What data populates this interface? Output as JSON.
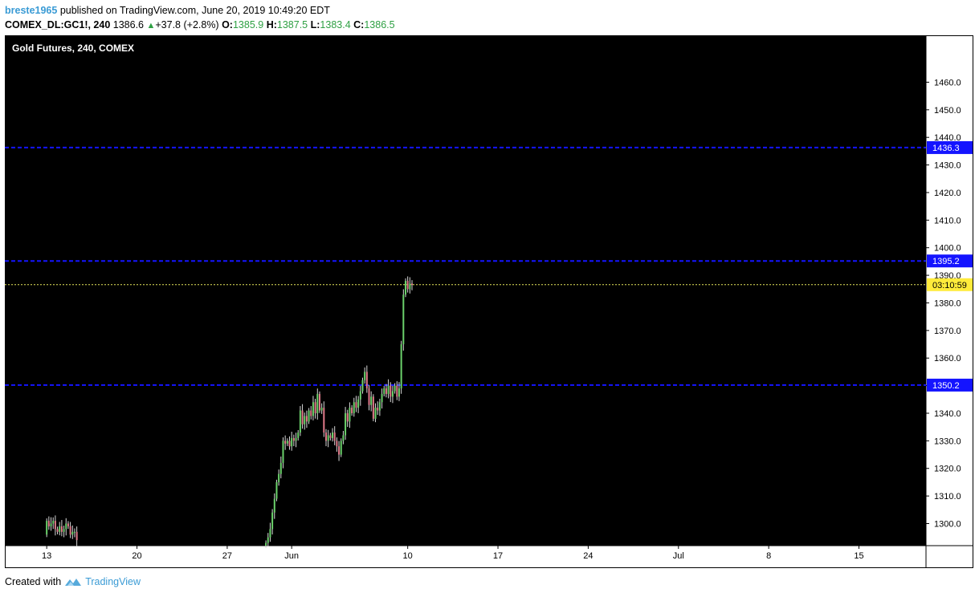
{
  "header": {
    "user": "breste1965",
    "published_text": "published on TradingView.com, June 20, 2019 10:49:20 EDT",
    "symbol": "COMEX_DL:GC1!, 240",
    "last": "1386.6",
    "change": "+37.8 (+2.8%)",
    "open_label": "O:",
    "open": "1385.9",
    "high_label": "H:",
    "high": "1387.5",
    "low_label": "L:",
    "low": "1383.4",
    "close_label": "C:",
    "close": "1386.5"
  },
  "footer": {
    "created_with": "Created with",
    "brand": "TradingView"
  },
  "colors": {
    "background": "#000000",
    "up_candle": "#6bd16b",
    "down_candle": "#e07a8a",
    "level_line": "#1414ff",
    "price_line": "#e6e65a",
    "countdown_bg": "#ffeb3b",
    "axis_bg": "#ffffff"
  },
  "chart_data": {
    "type": "candlestick",
    "title": "Gold Futures, 240, COMEX",
    "ylim": [
      1292,
      1477
    ],
    "y_ticks": [
      1300,
      1310,
      1320,
      1330,
      1340,
      1350,
      1360,
      1370,
      1380,
      1390,
      1400,
      1410,
      1420,
      1430,
      1440,
      1450,
      1460
    ],
    "y_tick_labels": [
      "1300.0",
      "1310.0",
      "1320.0",
      "1330.0",
      "1340.0",
      "1350.0",
      "1360.0",
      "1370.0",
      "1380.0",
      "1390.0",
      "1400.0",
      "1410.0",
      "1420.0",
      "1430.0",
      "1440.0",
      "1450.0",
      "1460.0"
    ],
    "x_ticks": [
      {
        "label": "13",
        "day": 13
      },
      {
        "label": "20",
        "day": 20
      },
      {
        "label": "27",
        "day": 27
      },
      {
        "label": "Jun",
        "day": 32
      },
      {
        "label": "10",
        "day": 41
      },
      {
        "label": "17",
        "day": 48
      },
      {
        "label": "24",
        "day": 55
      },
      {
        "label": "Jul",
        "day": 62
      },
      {
        "label": "8",
        "day": 69
      },
      {
        "label": "15",
        "day": 76
      }
    ],
    "x_range_days": [
      9.75,
      81.2
    ],
    "horizontal_levels": [
      {
        "value": 1436.3,
        "label": "1436.3"
      },
      {
        "value": 1395.2,
        "label": "1395.2"
      },
      {
        "value": 1350.2,
        "label": "1350.2"
      }
    ],
    "last_price": 1386.6,
    "countdown": "03:10:59",
    "segments": [
      {
        "start_day": 13.0,
        "start": 1296,
        "pts": [
          1301,
          1299,
          1300,
          1301,
          1298,
          1297,
          1299,
          1297,
          1298,
          1300,
          1299,
          1296,
          1297,
          1297,
          1294
        ]
      },
      {
        "start_day": 30.0,
        "start": 1292,
        "pts": [
          1293,
          1295,
          1298,
          1304,
          1309,
          1315,
          1318,
          1322,
          1330,
          1329,
          1330,
          1328,
          1331,
          1330,
          1331,
          1333,
          1341,
          1336,
          1339,
          1337,
          1341,
          1339,
          1344,
          1340,
          1347,
          1341,
          1342,
          1333,
          1330,
          1332,
          1331,
          1333,
          1330,
          1328,
          1325,
          1330,
          1332,
          1340,
          1337,
          1342,
          1340,
          1344,
          1342,
          1345,
          1348,
          1352,
          1355,
          1349,
          1343,
          1346,
          1338,
          1342,
          1341,
          1344,
          1347,
          1349,
          1347,
          1350,
          1346,
          1348,
          1350,
          1346,
          1349,
          1365,
          1383,
          1388,
          1385,
          1387,
          1386.5
        ]
      }
    ]
  }
}
